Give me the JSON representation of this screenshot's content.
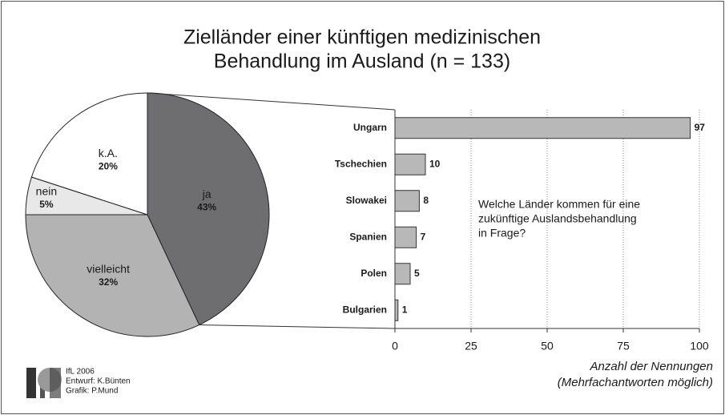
{
  "chart_data": [
    {
      "type": "pie",
      "title": [
        "Zielländer einer künftigen medizinischen",
        "Behandlung im Ausland (n = 133)"
      ],
      "categories": [
        "ja",
        "vielleicht",
        "nein",
        "k.A."
      ],
      "values": [
        43,
        32,
        5,
        20
      ],
      "value_labels": [
        "43%",
        "32%",
        "5%",
        "20%"
      ],
      "colors": [
        "#6e6e70",
        "#b3b3b3",
        "#e8e8e8",
        "#ffffff"
      ]
    },
    {
      "type": "bar",
      "orientation": "horizontal",
      "categories": [
        "Ungarn",
        "Tschechien",
        "Slowakei",
        "Spanien",
        "Polen",
        "Bulgarien"
      ],
      "values": [
        97,
        10,
        8,
        7,
        5,
        1
      ],
      "color": "#b8b8b8",
      "xlim": [
        0,
        100
      ],
      "xticks": [
        0,
        25,
        50,
        75,
        100
      ],
      "grid": true,
      "xlabel": [
        "Anzahl der Nennungen",
        "(Mehrfachantworten möglich)"
      ],
      "annotation": [
        "Welche Länder kommen für eine",
        "zukünftige Auslandsbehandlung",
        "in Frage?"
      ]
    }
  ],
  "credits": [
    "IfL 2006",
    "Entwurf: K.Bünten",
    "Grafik: P.Mund"
  ]
}
